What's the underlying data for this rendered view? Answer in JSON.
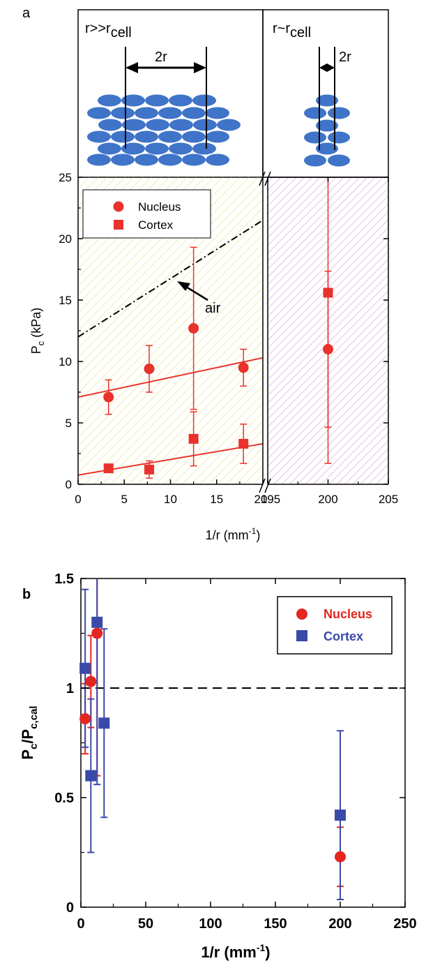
{
  "colors": {
    "nucleus_a": "#e8322b",
    "cortex_a": "#e8322b",
    "nucleus_b": "#e3261f",
    "cortex_b": "#3a4aa8",
    "cell": "#3f74c8",
    "hatch_left": "#e6e07a",
    "hatch_right": "#d59ad2",
    "air_line": "#000000",
    "axis": "#000000"
  },
  "panel_a": {
    "label": "a",
    "schematic": {
      "left_text_main": "r>>r",
      "left_text_sub": "cell",
      "right_text_main": "r~r",
      "right_text_sub": "cell",
      "dim_label_left": "2r",
      "dim_label_right": "2r"
    },
    "annotation_air": "air"
  },
  "panel_b": {
    "label": "b"
  },
  "chart_data": [
    {
      "type": "scatter",
      "title": "",
      "xlabel": "1/r (mm",
      "xlabel_sup": "-1",
      "xlabel_close": ")",
      "ylabel": "P",
      "ylabel_sub": "c",
      "ylabel_rest": " (kPa)",
      "broken_x_axis": true,
      "x_segments": [
        {
          "range": [
            0,
            20
          ],
          "ticks": [
            "0",
            "5",
            "10",
            "15",
            "20"
          ],
          "tick_values": [
            0,
            5,
            10,
            15,
            20
          ]
        },
        {
          "range": [
            195,
            205
          ],
          "ticks": [
            "195",
            "200",
            "205"
          ],
          "tick_values": [
            195,
            200,
            205
          ]
        }
      ],
      "ylim": [
        0,
        25
      ],
      "y_ticks": [
        0,
        5,
        10,
        15,
        20,
        25
      ],
      "grid": false,
      "legend_position": "top-left",
      "series": [
        {
          "name": "Nucleus",
          "marker": "circle",
          "points": [
            {
              "x": 3.3,
              "y": 7.1,
              "err": 1.4
            },
            {
              "x": 7.7,
              "y": 9.4,
              "err": 1.9
            },
            {
              "x": 12.5,
              "y": 12.7,
              "err": 6.6
            },
            {
              "x": 17.9,
              "y": 9.5,
              "err": 1.5
            },
            {
              "x": 200,
              "y": 11.0,
              "err": 6.35
            }
          ],
          "fit": {
            "x": [
              0,
              20
            ],
            "y": [
              7.1,
              10.3
            ]
          }
        },
        {
          "name": "Cortex",
          "marker": "square",
          "points": [
            {
              "x": 3.3,
              "y": 1.3,
              "err": 0.3
            },
            {
              "x": 7.7,
              "y": 1.2,
              "err": 0.7
            },
            {
              "x": 12.5,
              "y": 3.7,
              "err": 2.2
            },
            {
              "x": 17.9,
              "y": 3.3,
              "err": 1.6
            },
            {
              "x": 200,
              "y": 15.6,
              "err": 13.9
            }
          ],
          "fit": {
            "x": [
              0,
              20
            ],
            "y": [
              0.75,
              3.3
            ]
          }
        }
      ],
      "reference_line": {
        "label": "air",
        "style": "dash-dot",
        "x": [
          0,
          20
        ],
        "y": [
          12.0,
          21.5
        ]
      }
    },
    {
      "type": "scatter",
      "title": "",
      "xlabel": "1/r (mm",
      "xlabel_sup": "-1",
      "xlabel_close": ")",
      "ylabel": "P",
      "ylabel_sub1": "c",
      "ylabel_mid": "/P",
      "ylabel_sub2": "c,cal",
      "xlim": [
        0,
        250
      ],
      "ylim": [
        0,
        1.5
      ],
      "x_ticks": [
        0,
        50,
        100,
        150,
        200,
        250
      ],
      "y_ticks": [
        "0",
        "0.5",
        "1",
        "1.5"
      ],
      "y_tick_values": [
        0,
        0.5,
        1,
        1.5
      ],
      "grid": false,
      "legend_position": "top-right",
      "reference_line": {
        "style": "dashed",
        "y": 1
      },
      "series": [
        {
          "name": "Nucleus",
          "marker": "circle",
          "points": [
            {
              "x": 3.3,
              "y": 0.86,
              "err": 0.16
            },
            {
              "x": 7.7,
              "y": 1.03,
              "err": 0.21
            },
            {
              "x": 12.5,
              "y": 1.25,
              "err": 0.65
            },
            {
              "x": 200,
              "y": 0.23,
              "err": 0.135
            }
          ]
        },
        {
          "name": "Cortex",
          "marker": "square",
          "points": [
            {
              "x": 3.3,
              "y": 1.09,
              "err": 0.36
            },
            {
              "x": 7.7,
              "y": 0.6,
              "err": 0.35
            },
            {
              "x": 12.5,
              "y": 1.3,
              "err": 0.74
            },
            {
              "x": 17.9,
              "y": 0.84,
              "err": 0.43
            },
            {
              "x": 200,
              "y": 0.42,
              "err": 0.385
            }
          ]
        }
      ]
    }
  ]
}
